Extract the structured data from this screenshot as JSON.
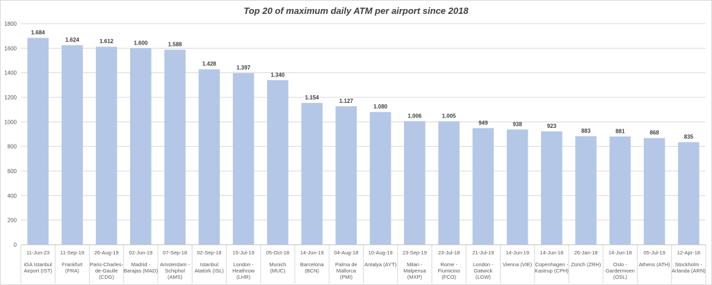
{
  "chart_data": {
    "type": "bar",
    "title": "Top 20 of maximum daily ATM per airport since 2018",
    "xlabel": "",
    "ylabel": "",
    "ylim": [
      0,
      1800
    ],
    "yticks": [
      "0",
      "200",
      "400",
      "600",
      "800",
      "1000",
      "1200",
      "1400",
      "1600",
      "1800"
    ],
    "grid": true,
    "bar_color": "#b4c7e7",
    "categories": [
      {
        "date": "11-Jun-23",
        "airport": [
          "iGA Istanbul",
          "Airport (IST)"
        ]
      },
      {
        "date": "11-Sep-19",
        "airport": [
          "Frankfurt",
          "(FRA)"
        ]
      },
      {
        "date": "26-Aug-19",
        "airport": [
          "Paris-Charles-",
          "de-Gaulle",
          "(CDG)"
        ]
      },
      {
        "date": "02-Jun-19",
        "airport": [
          "Madrid -",
          "Barajas (MAD)"
        ]
      },
      {
        "date": "07-Sep-18",
        "airport": [
          "Amsterdam -",
          "Schiphol",
          "(AMS)"
        ]
      },
      {
        "date": "02-Sep-18",
        "airport": [
          "Istanbul",
          "Atatürk (ISL)"
        ]
      },
      {
        "date": "15-Jul-19",
        "airport": [
          "London -",
          "Heathrow",
          "(LHR)"
        ]
      },
      {
        "date": "05-Oct-18",
        "airport": [
          "Munich",
          "(MUC)"
        ]
      },
      {
        "date": "14-Jun-19",
        "airport": [
          "Barcelona",
          "(BCN)"
        ]
      },
      {
        "date": "04-Aug-18",
        "airport": [
          "Palma de",
          "Mallorca",
          "(PMI)"
        ]
      },
      {
        "date": "10-Aug-19",
        "airport": [
          "Antalya (AYT)"
        ]
      },
      {
        "date": "23-Sep-19",
        "airport": [
          "Milan -",
          "Malpensa",
          "(MXP)"
        ]
      },
      {
        "date": "23-Jul-18",
        "airport": [
          "Rome -",
          "Fiumicino",
          "(FCO)"
        ]
      },
      {
        "date": "21-Jul-19",
        "airport": [
          "London -",
          "Gatwick",
          "(LGW)"
        ]
      },
      {
        "date": "14-Jun-19",
        "airport": [
          "Vienna (VIE)"
        ]
      },
      {
        "date": "14-Jun-18",
        "airport": [
          "Copenhagen -",
          "Kastrup (CPH)"
        ]
      },
      {
        "date": "26-Jan-18",
        "airport": [
          "Zürich (ZRH)"
        ]
      },
      {
        "date": "14-Jun-18",
        "airport": [
          "Oslo -",
          "Gardermoen",
          "(OSL)"
        ]
      },
      {
        "date": "05-Jul-19",
        "airport": [
          "Athens (ATH)"
        ]
      },
      {
        "date": "12-Apr-18",
        "airport": [
          "Stockholm -",
          "Arlanda (ARN)"
        ]
      }
    ],
    "values": [
      1684,
      1624,
      1612,
      1600,
      1588,
      1428,
      1397,
      1340,
      1154,
      1127,
      1080,
      1006,
      1005,
      949,
      938,
      923,
      883,
      881,
      868,
      835
    ],
    "value_labels": [
      "1.684",
      "1.624",
      "1.612",
      "1.600",
      "1.588",
      "1.428",
      "1.397",
      "1.340",
      "1.154",
      "1.127",
      "1.080",
      "1.006",
      "1.005",
      "949",
      "938",
      "923",
      "883",
      "881",
      "868",
      "835"
    ]
  }
}
